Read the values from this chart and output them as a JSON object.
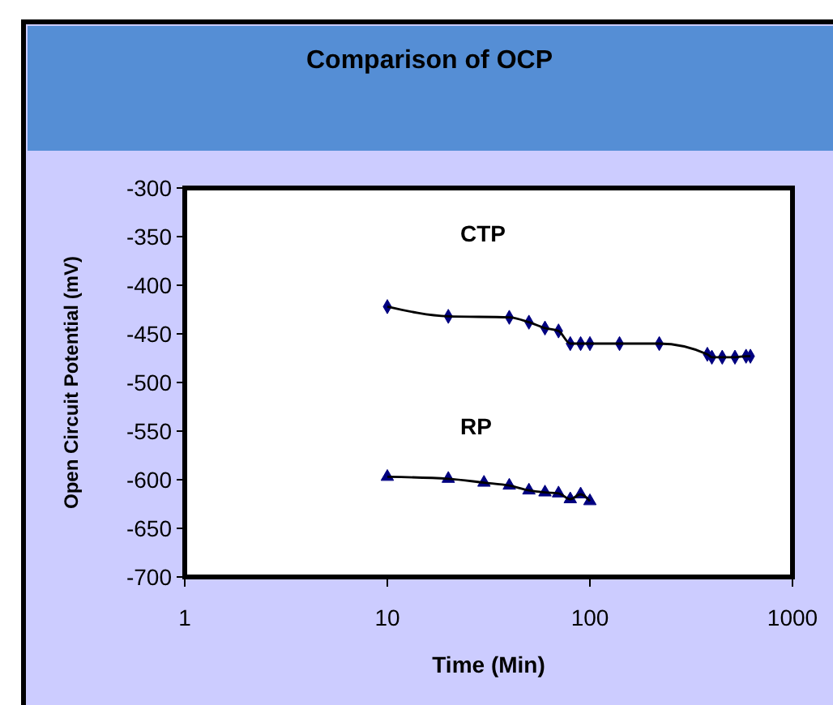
{
  "chart_data": {
    "type": "line",
    "title": "Comparison of OCP",
    "xlabel": "Time (Min)",
    "ylabel": "Open Circuit Potential (mV)",
    "log": "x",
    "xlim": [
      1,
      1000
    ],
    "xticks": [
      1,
      10,
      100,
      1000
    ],
    "ylim": [
      -700,
      -300
    ],
    "yticks": [
      -700,
      -650,
      -600,
      -550,
      -500,
      -450,
      -400,
      -350,
      -300
    ],
    "grid": false,
    "series": [
      {
        "name": "CTP",
        "color": "#000080",
        "marker": "diamond",
        "x": [
          10,
          20,
          40,
          50,
          60,
          70,
          80,
          90,
          100,
          140,
          220,
          380,
          400,
          450,
          520,
          590,
          620
        ],
        "values": [
          -422,
          -432,
          -433,
          -438,
          -444,
          -447,
          -460,
          -460,
          -460,
          -460,
          -460,
          -471,
          -474,
          -474,
          -474,
          -473,
          -473
        ]
      },
      {
        "name": "RP",
        "color": "#000080",
        "marker": "triangle",
        "x": [
          10,
          20,
          30,
          40,
          50,
          60,
          70,
          80,
          90,
          100
        ],
        "values": [
          -597,
          -599,
          -603,
          -606,
          -611,
          -613,
          -614,
          -620,
          -615,
          -622
        ]
      }
    ]
  }
}
